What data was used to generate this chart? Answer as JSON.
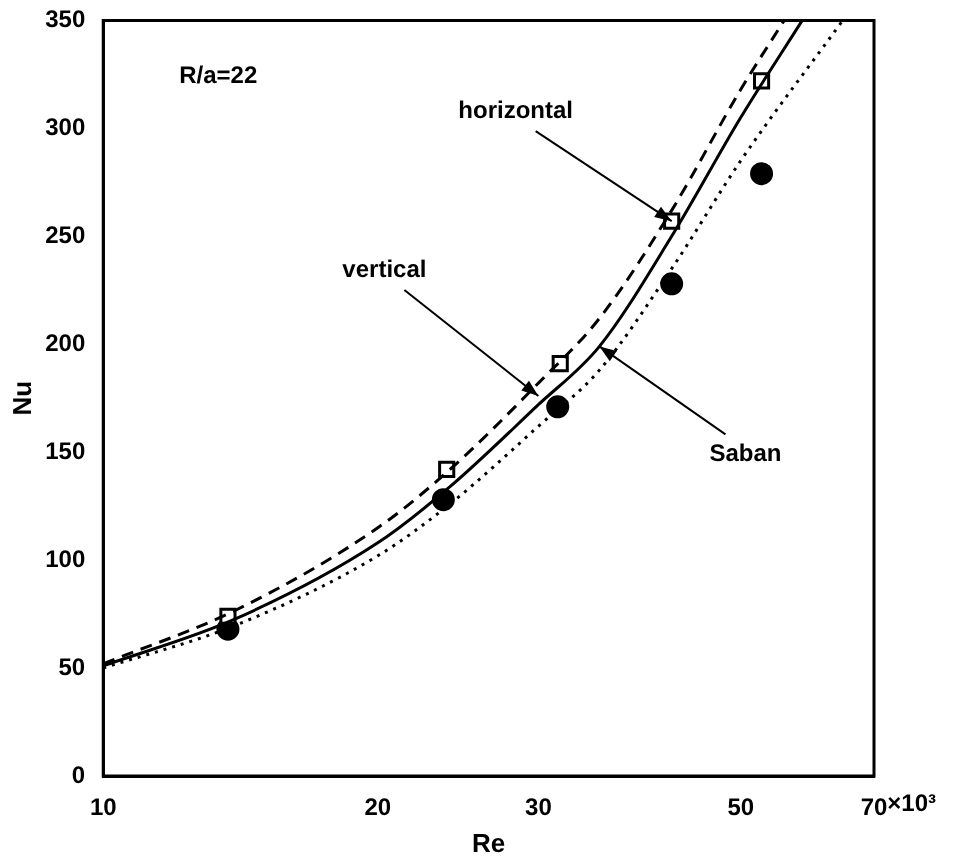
{
  "chart_data": {
    "type": "line",
    "xlabel": "Re",
    "ylabel": "Nu",
    "log": "x",
    "xlim": [
      10,
      70
    ],
    "xticks": [
      10,
      20,
      30,
      50,
      70
    ],
    "ylim": [
      0,
      350
    ],
    "yticks": [
      0,
      50,
      100,
      150,
      200,
      250,
      300,
      350
    ],
    "grid": false,
    "legend": false,
    "series": [
      {
        "color": "#000000",
        "line_style": "dashed",
        "x": [
          10,
          14,
          20,
          24,
          30,
          35,
          42,
          50,
          55.8
        ],
        "values": [
          52,
          77,
          115,
          142,
          182,
          212,
          262,
          318,
          350
        ]
      },
      {
        "color": "#000000",
        "line_style": "solid",
        "x": [
          10,
          14,
          20,
          24,
          30,
          35,
          42,
          50,
          58.4
        ],
        "values": [
          51,
          73,
          108,
          134,
          172,
          199,
          250,
          305,
          350
        ]
      },
      {
        "color": "#000000",
        "line_style": "dotted",
        "x": [
          10,
          14,
          20,
          24,
          30,
          35,
          42,
          50,
          64.7
        ],
        "values": [
          50,
          70,
          102,
          126,
          162,
          188,
          235,
          285,
          350
        ]
      },
      {
        "type": "scatter",
        "color": "#000000",
        "marker": "square",
        "x": [
          13.7,
          23.8,
          31.7,
          42,
          52.7
        ],
        "values": [
          74,
          142,
          191,
          257,
          322
        ]
      },
      {
        "type": "scatter",
        "color": "#000000",
        "marker": "circle",
        "x": [
          13.7,
          23.6,
          31.5,
          42,
          52.7
        ],
        "values": [
          68,
          128,
          171,
          228,
          279
        ]
      }
    ],
    "annotations": [
      "R/a=22",
      "×10³",
      {
        "text": "horizontal",
        "x": 42,
        "y": 257
      },
      {
        "text": "vertical",
        "x": 30,
        "y": 176
      },
      {
        "text": "Saban",
        "x": 35,
        "y": 199
      }
    ]
  }
}
